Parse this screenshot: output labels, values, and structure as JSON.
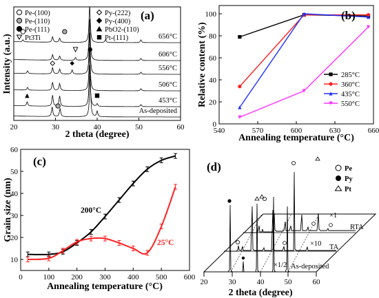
{
  "chart_data": [
    {
      "id": "a",
      "type": "line",
      "panel_label": "(a)",
      "xlabel": "2 theta (degree)",
      "ylabel": "Intensity (a.u.)",
      "xlim": [
        20,
        60
      ],
      "xticks": [
        20,
        30,
        40,
        50,
        60
      ],
      "legend_left": [
        {
          "symbol": "circle-open",
          "label": "Pe-(100)"
        },
        {
          "symbol": "circle-gray",
          "label": "Pe-(110)"
        },
        {
          "symbol": "circle-filled",
          "label": "Pe-(111)"
        },
        {
          "symbol": "triangle-down-open",
          "label": "Pt3Ti"
        }
      ],
      "legend_right": [
        {
          "symbol": "diamond-open",
          "label": "Py-(222)"
        },
        {
          "symbol": "diamond-filled",
          "label": "Py-(400)"
        },
        {
          "symbol": "triangle-filled",
          "label": "PbO2-(110)"
        },
        {
          "symbol": "square-filled",
          "label": "Pt-(111)"
        }
      ],
      "traces": [
        {
          "label": "656°C",
          "markers": [
            {
              "x": 22.2,
              "symbol": "circle-open"
            },
            {
              "x": 32.2,
              "symbol": "circle-gray"
            }
          ]
        },
        {
          "label": "606°C",
          "markers": [
            {
              "x": 34.8,
              "symbol": "triangle-down-open"
            },
            {
              "x": 38.3,
              "symbol": "circle-filled"
            }
          ]
        },
        {
          "label": "556°C",
          "markers": [
            {
              "x": 29.3,
              "symbol": "diamond-open"
            },
            {
              "x": 34.0,
              "symbol": "diamond-filled"
            }
          ]
        },
        {
          "label": "506°C",
          "markers": []
        },
        {
          "label": "453°C",
          "markers": [
            {
              "x": 23.2,
              "symbol": "triangle-filled"
            },
            {
              "x": 40.0,
              "symbol": "square-filled"
            }
          ]
        },
        {
          "label": "As-deposited",
          "markers": [
            {
              "x": 30.6,
              "symbol": "circle-gray"
            }
          ]
        }
      ]
    },
    {
      "id": "b",
      "type": "line",
      "panel_label": "(b)",
      "xlabel": "Annealing temperature (°C)",
      "ylabel": "Relative content (%)",
      "xlim": [
        540,
        660
      ],
      "ylim": [
        0,
        100
      ],
      "xticks": [
        540,
        570,
        600,
        630,
        660
      ],
      "yticks": [
        0,
        20,
        40,
        60,
        80,
        100
      ],
      "categories": [
        556,
        606,
        656
      ],
      "legend_position": "lower-right",
      "series": [
        {
          "name": "285°C",
          "color": "#000000",
          "marker": "square",
          "values": [
            79,
            99,
            98
          ]
        },
        {
          "name": "360°C",
          "color": "#ff2020",
          "marker": "circle",
          "values": [
            34,
            99,
            99
          ]
        },
        {
          "name": "435°C",
          "color": "#2030ff",
          "marker": "triangle-up",
          "values": [
            15,
            100,
            97
          ]
        },
        {
          "name": "550°C",
          "color": "#ff30ff",
          "marker": "triangle-down",
          "values": [
            6,
            30,
            88
          ]
        }
      ]
    },
    {
      "id": "c",
      "type": "line",
      "panel_label": "(c)",
      "xlabel": "Annealing temperature (°C)",
      "ylabel": "Grain size (nm)",
      "xlim": [
        0,
        600
      ],
      "ylim": [
        5,
        60
      ],
      "xticks": [
        0,
        100,
        200,
        300,
        400,
        500,
        600
      ],
      "yticks": [
        10,
        20,
        30,
        40,
        50,
        60
      ],
      "series": [
        {
          "name": "200°C",
          "color": "#000000",
          "x": [
            25,
            100,
            150,
            200,
            250,
            300,
            350,
            400,
            450,
            500,
            550
          ],
          "values": [
            12.3,
            12.3,
            13.5,
            17.5,
            22.5,
            29.5,
            37,
            44.5,
            51,
            55,
            57
          ]
        },
        {
          "name": "25°C",
          "color": "#ff2020",
          "x": [
            25,
            100,
            150,
            200,
            250,
            300,
            350,
            400,
            450,
            500,
            550
          ],
          "values": [
            10,
            10.5,
            14,
            18,
            19.5,
            19.5,
            17.5,
            15,
            13,
            25,
            43
          ]
        }
      ]
    },
    {
      "id": "d",
      "type": "line",
      "panel_label": "(d)",
      "xlabel": "2 theta (degree)",
      "xticks": [
        20,
        30,
        40,
        50,
        60
      ],
      "legend": [
        {
          "symbol": "circle-open",
          "label": "Pe"
        },
        {
          "symbol": "circle-filled",
          "label": "Py"
        },
        {
          "symbol": "triangle-open",
          "label": "Pt"
        }
      ],
      "traces": [
        {
          "label": "RTA",
          "scale_label": "×1"
        },
        {
          "label": "TA",
          "scale_label": "×10"
        },
        {
          "label": "As-deposited",
          "scale_label": "×1/2"
        }
      ]
    }
  ]
}
